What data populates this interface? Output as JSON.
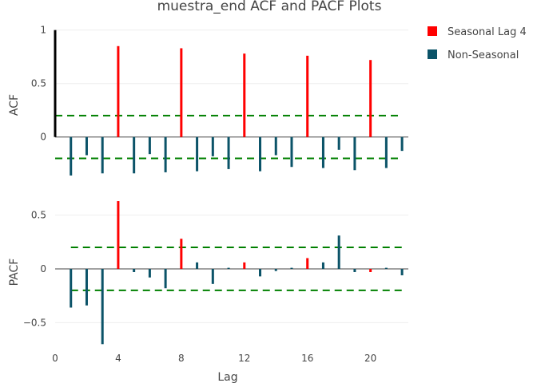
{
  "chart_data": {
    "type": "bar",
    "title": "muestra_end ACF and PACF Plots",
    "xlabel": "Lag",
    "xlim": [
      0,
      22.4
    ],
    "x_ticks": [
      "0",
      "4",
      "8",
      "12",
      "16",
      "20"
    ],
    "legend": {
      "placement": "top-right",
      "items": [
        {
          "name": "Seasonal Lag 4",
          "color": "#ff0000"
        },
        {
          "name": "Non-Seasonal",
          "color": "#0b5368"
        }
      ]
    },
    "lag0_color": "#000000",
    "confidence_color": "#008000",
    "panels": [
      {
        "ylabel": "ACF",
        "ylim": [
          -0.42,
          1.02
        ],
        "y_ticks": [
          {
            "v": 1,
            "t": "1"
          },
          {
            "v": 0.5,
            "t": "0.5"
          },
          {
            "v": 0,
            "t": "0"
          }
        ],
        "conf_band": [
          -0.2,
          0.2
        ],
        "values": [
          1,
          -0.36,
          -0.17,
          -0.34,
          0.85,
          -0.34,
          -0.16,
          -0.33,
          0.83,
          -0.32,
          -0.18,
          -0.3,
          0.78,
          -0.32,
          -0.17,
          -0.28,
          0.76,
          -0.29,
          -0.12,
          -0.31,
          0.72,
          -0.29,
          -0.13
        ]
      },
      {
        "ylabel": "PACF",
        "ylim": [
          -0.72,
          0.66
        ],
        "y_ticks": [
          {
            "v": 0.5,
            "t": "0.5"
          },
          {
            "v": 0,
            "t": "0"
          },
          {
            "v": -0.5,
            "t": "−0.5"
          }
        ],
        "conf_band": [
          -0.2,
          0.2
        ],
        "values": [
          null,
          -0.36,
          -0.34,
          -0.7,
          0.63,
          -0.03,
          -0.08,
          -0.18,
          0.28,
          0.06,
          -0.14,
          0.01,
          0.06,
          -0.07,
          -0.02,
          0.01,
          0.1,
          0.06,
          0.31,
          -0.03,
          -0.03,
          0.01,
          -0.06
        ]
      }
    ]
  }
}
